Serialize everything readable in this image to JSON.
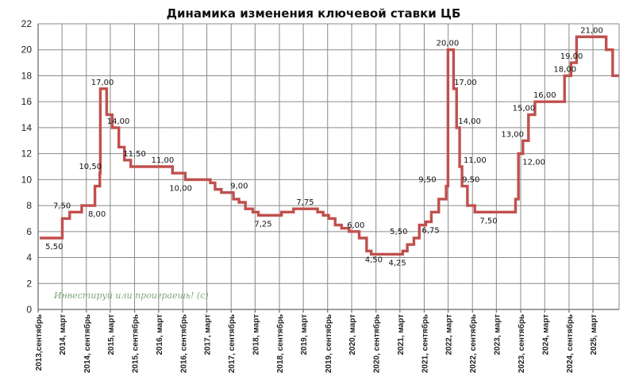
{
  "chart_data": {
    "type": "line",
    "title": "Динамика изменения ключевой ставки ЦБ",
    "ylim": [
      0,
      22
    ],
    "yticks": [
      "0",
      "2",
      "4",
      "6",
      "8",
      "10",
      "12",
      "14",
      "16",
      "18",
      "20",
      "22"
    ],
    "xticks": [
      "2013,сентябрь",
      "2014, март",
      "2014, сентябрь",
      "2015, март",
      "2015, сентябрь",
      "2016, март",
      "2016, сентябрь",
      "2017, март",
      "2017, сентябрь",
      "2018, март",
      "2018, сентябрь",
      "2019, март",
      "2019, сентябрь",
      "2020, март",
      "2020, сентябрь",
      "2021, март",
      "2021, сентябрь",
      "2022, март",
      "2022, сентябрь",
      "2023, март",
      "2023, сентябрь",
      "2024, март",
      "2024, сентябрь",
      "2025, март"
    ],
    "grid": true,
    "series": [
      {
        "color": "#c0504d",
        "x": [
          "2013-09-13",
          "2014-03-03",
          "2014-04-28",
          "2014-07-28",
          "2014-11-05",
          "2014-12-12",
          "2014-12-16",
          "2015-02-02",
          "2015-03-16",
          "2015-05-05",
          "2015-06-16",
          "2015-08-03",
          "2016-06-14",
          "2016-09-19",
          "2017-03-27",
          "2017-05-02",
          "2017-06-19",
          "2017-09-18",
          "2017-10-30",
          "2017-12-18",
          "2018-02-12",
          "2018-03-26",
          "2018-09-17",
          "2018-12-17",
          "2019-06-17",
          "2019-07-29",
          "2019-09-09",
          "2019-10-28",
          "2019-12-16",
          "2020-02-10",
          "2020-04-27",
          "2020-06-22",
          "2020-07-27",
          "2021-03-22",
          "2021-04-26",
          "2021-06-15",
          "2021-07-26",
          "2021-09-13",
          "2021-10-25",
          "2021-12-20",
          "2022-02-14",
          "2022-02-28",
          "2022-04-11",
          "2022-05-04",
          "2022-05-27",
          "2022-06-14",
          "2022-07-25",
          "2022-09-19",
          "2023-07-24",
          "2023-08-15",
          "2023-09-18",
          "2023-10-30",
          "2023-12-18",
          "2024-07-29",
          "2024-09-16",
          "2024-10-28",
          "2025-06-09",
          "2025-07-28"
        ],
        "y": [
          5.5,
          7.0,
          7.5,
          8.0,
          9.5,
          10.5,
          17.0,
          15.0,
          14.0,
          12.5,
          11.5,
          11.0,
          10.5,
          10.0,
          9.75,
          9.25,
          9.0,
          8.5,
          8.25,
          7.75,
          7.5,
          7.25,
          7.5,
          7.75,
          7.5,
          7.25,
          7.0,
          6.5,
          6.25,
          6.0,
          5.5,
          4.5,
          4.25,
          4.5,
          5.0,
          5.5,
          6.5,
          6.75,
          7.5,
          8.5,
          9.5,
          20.0,
          17.0,
          14.0,
          11.0,
          9.5,
          8.0,
          7.5,
          8.5,
          12.0,
          13.0,
          15.0,
          16.0,
          18.0,
          19.0,
          21.0,
          20.0,
          18.0
        ]
      }
    ],
    "data_labels": [
      {
        "text": "5,50",
        "x": "2014-01-01",
        "y": 5.5,
        "pos": "below"
      },
      {
        "text": "7,50",
        "x": "2014-03-01",
        "y": 7.5,
        "pos": "above"
      },
      {
        "text": "10,50",
        "x": "2014-10-01",
        "y": 10.5,
        "pos": "above"
      },
      {
        "text": "8,00",
        "x": "2014-11-20",
        "y": 8.0,
        "pos": "below"
      },
      {
        "text": "17,00",
        "x": "2015-01-01",
        "y": 17.0,
        "pos": "above"
      },
      {
        "text": "14,00",
        "x": "2015-05-01",
        "y": 14.0,
        "pos": "above"
      },
      {
        "text": "11,50",
        "x": "2015-09-01",
        "y": 11.5,
        "pos": "above"
      },
      {
        "text": "11,00",
        "x": "2016-04-01",
        "y": 11.0,
        "pos": "above"
      },
      {
        "text": "10,00",
        "x": "2016-08-15",
        "y": 10.0,
        "pos": "below"
      },
      {
        "text": "9,00",
        "x": "2017-11-01",
        "y": 9.0,
        "pos": "above"
      },
      {
        "text": "7,25",
        "x": "2018-05-01",
        "y": 7.25,
        "pos": "below"
      },
      {
        "text": "7,75",
        "x": "2019-03-15",
        "y": 7.75,
        "pos": "above"
      },
      {
        "text": "6,00",
        "x": "2020-04-01",
        "y": 6.0,
        "pos": "above"
      },
      {
        "text": "4,50",
        "x": "2020-08-15",
        "y": 4.5,
        "pos": "below"
      },
      {
        "text": "5,50",
        "x": "2021-02-20",
        "y": 5.5,
        "pos": "above"
      },
      {
        "text": "4,25",
        "x": "2021-02-10",
        "y": 4.25,
        "pos": "below"
      },
      {
        "text": "6,75",
        "x": "2021-10-20",
        "y": 6.75,
        "pos": "below"
      },
      {
        "text": "9,50",
        "x": "2021-09-25",
        "y": 9.5,
        "pos": "above"
      },
      {
        "text": "20,00",
        "x": "2022-02-25",
        "y": 20.0,
        "pos": "above"
      },
      {
        "text": "17,00",
        "x": "2022-07-10",
        "y": 17.0,
        "pos": "above"
      },
      {
        "text": "14,00",
        "x": "2022-08-10",
        "y": 14.0,
        "pos": "above"
      },
      {
        "text": "11,00",
        "x": "2022-09-20",
        "y": 11.0,
        "pos": "above"
      },
      {
        "text": "9,50",
        "x": "2022-08-20",
        "y": 9.5,
        "pos": "above"
      },
      {
        "text": "7,50",
        "x": "2023-01-01",
        "y": 7.5,
        "pos": "below"
      },
      {
        "text": "13,00",
        "x": "2023-07-01",
        "y": 13.0,
        "pos": "above"
      },
      {
        "text": "15,00",
        "x": "2023-09-25",
        "y": 15.0,
        "pos": "above"
      },
      {
        "text": "12,00",
        "x": "2023-12-10",
        "y": 12.0,
        "pos": "below"
      },
      {
        "text": "16,00",
        "x": "2024-03-01",
        "y": 16.0,
        "pos": "above"
      },
      {
        "text": "18,00",
        "x": "2024-08-01",
        "y": 18.0,
        "pos": "above"
      },
      {
        "text": "19,00",
        "x": "2024-09-20",
        "y": 19.0,
        "pos": "above"
      },
      {
        "text": "21,00",
        "x": "2025-02-20",
        "y": 21.0,
        "pos": "above"
      }
    ],
    "watermark": "Инвестируй или проиграешь! (с)"
  }
}
